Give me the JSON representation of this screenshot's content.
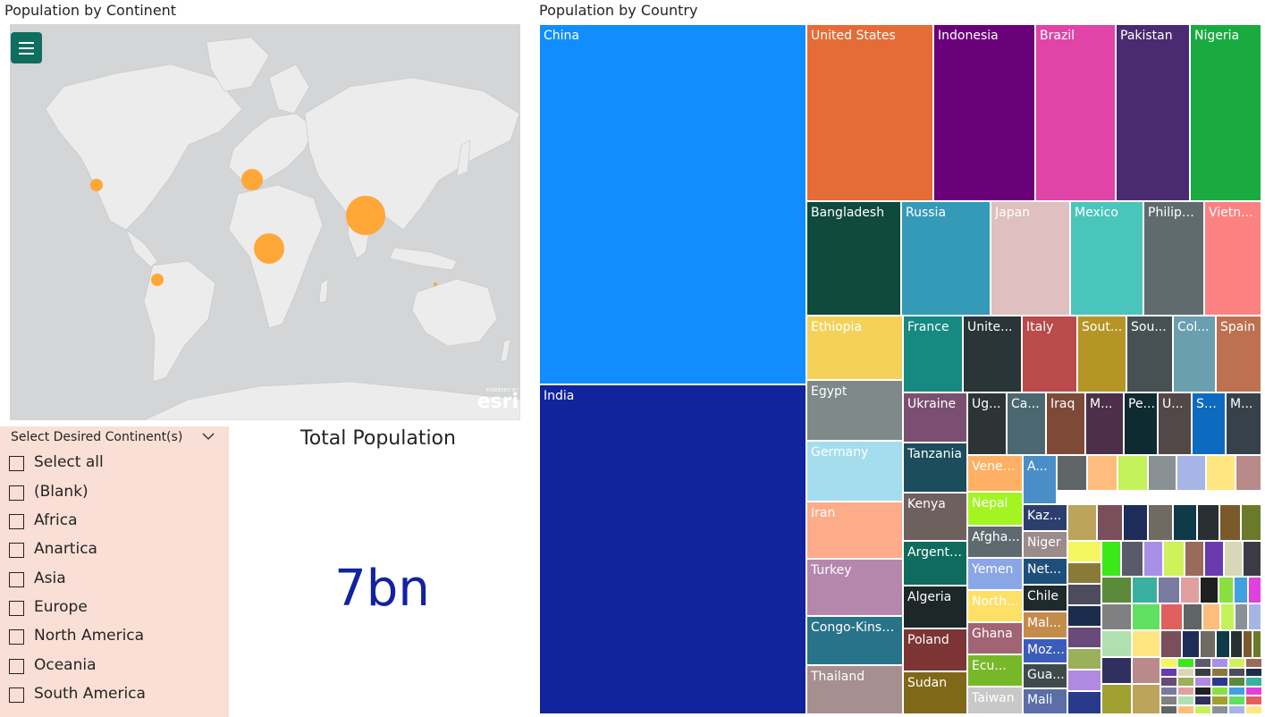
{
  "map_visual": {
    "title": "Population by Continent",
    "menu_icon": "hamburger-menu-icon",
    "attribution_small": "POWERED BY",
    "attribution": "esri",
    "bubble_color": "#ffa737",
    "bubbles": [
      {
        "continent": "North America",
        "size": 1
      },
      {
        "continent": "Europe",
        "size": 2
      },
      {
        "continent": "Asia",
        "size": 4
      },
      {
        "continent": "Africa",
        "size": 3
      },
      {
        "continent": "South America",
        "size": 1
      },
      {
        "continent": "Oceania",
        "size": 0.3
      }
    ]
  },
  "slicer": {
    "header": "Select Desired Continent(s)",
    "chevron_icon": "chevron-down-icon",
    "items": [
      {
        "label": "Select all",
        "checked": false
      },
      {
        "label": "(Blank)",
        "checked": false
      },
      {
        "label": "Africa",
        "checked": false
      },
      {
        "label": "Anartica",
        "checked": false
      },
      {
        "label": "Asia",
        "checked": false
      },
      {
        "label": "Europe",
        "checked": false
      },
      {
        "label": "North America",
        "checked": false
      },
      {
        "label": "Oceania",
        "checked": false
      },
      {
        "label": "South America",
        "checked": false
      }
    ]
  },
  "card": {
    "title": "Total Population",
    "value": "7bn",
    "value_color": "#12239e"
  },
  "treemap": {
    "title": "Population by Country",
    "tiles": [
      {
        "label": "China",
        "color": "#118dff"
      },
      {
        "label": "India",
        "color": "#12239e"
      },
      {
        "label": "United States",
        "color": "#e66c37"
      },
      {
        "label": "Indonesia",
        "color": "#6b007b"
      },
      {
        "label": "Brazil",
        "color": "#e044a7"
      },
      {
        "label": "Pakistan",
        "color": "#4a2a70"
      },
      {
        "label": "Nigeria",
        "color": "#1aab40"
      },
      {
        "label": "Bangladesh",
        "color": "#0f4a3d"
      },
      {
        "label": "Russia",
        "color": "#3599b8"
      },
      {
        "label": "Japan",
        "color": "#dfbfbf"
      },
      {
        "label": "Mexico",
        "color": "#4ac5bb"
      },
      {
        "label": "Philipp...",
        "color": "#5f6b6d"
      },
      {
        "label": "Vietn...",
        "color": "#fb8281"
      },
      {
        "label": "Ethiopia",
        "color": "#f4d25a"
      },
      {
        "label": "Egypt",
        "color": "#7f898a"
      },
      {
        "label": "Germany",
        "color": "#a4ddee"
      },
      {
        "label": "Iran",
        "color": "#fdab89"
      },
      {
        "label": "Turkey",
        "color": "#b687ac"
      },
      {
        "label": "Congo-Kinsh...",
        "color": "#28738a"
      },
      {
        "label": "Thailand",
        "color": "#a78f8f"
      },
      {
        "label": "France",
        "color": "#168980"
      },
      {
        "label": "Unite...",
        "color": "#293537"
      },
      {
        "label": "Italy",
        "color": "#bb4a4a"
      },
      {
        "label": "Sout...",
        "color": "#b59525"
      },
      {
        "label": "Sou...",
        "color": "#475052"
      },
      {
        "label": "Col...",
        "color": "#6a9fb0"
      },
      {
        "label": "Spain",
        "color": "#bd7150"
      },
      {
        "label": "Ukraine",
        "color": "#7b4f71"
      },
      {
        "label": "Tanzania",
        "color": "#1b4d5c"
      },
      {
        "label": "Kenya",
        "color": "#6f6060"
      },
      {
        "label": "Argenti...",
        "color": "#0e6b5d"
      },
      {
        "label": "Algeria",
        "color": "#1e2728"
      },
      {
        "label": "Poland",
        "color": "#7c3434"
      },
      {
        "label": "Sudan",
        "color": "#7f6818"
      },
      {
        "label": "Ug...",
        "color": "#2c3436"
      },
      {
        "label": "Ca...",
        "color": "#4b6770"
      },
      {
        "label": "Iraq",
        "color": "#7e4a38"
      },
      {
        "label": "M...",
        "color": "#4d2f4a"
      },
      {
        "label": "Pe...",
        "color": "#0f2a30"
      },
      {
        "label": "U...",
        "color": "#524848"
      },
      {
        "label": "Sa...",
        "color": "#0d6abf"
      },
      {
        "label": "M...",
        "color": "#374149"
      },
      {
        "label": "Venez...",
        "color": "#ffb064"
      },
      {
        "label": "A...",
        "color": "#4a8ec8"
      },
      {
        "label": "Nepal",
        "color": "#a4f422"
      },
      {
        "label": "Kaz...",
        "color": "#2c3e6e"
      },
      {
        "label": "Afgha...",
        "color": "#5e6a70"
      },
      {
        "label": "Niger",
        "color": "#9c8b8b"
      },
      {
        "label": "Yemen",
        "color": "#8ba6e6"
      },
      {
        "label": "Net...",
        "color": "#1e4f7a"
      },
      {
        "label": "North...",
        "color": "#ffe066"
      },
      {
        "label": "Chile",
        "color": "#1f2a2c"
      },
      {
        "label": "Ghana",
        "color": "#a06474"
      },
      {
        "label": "Mal...",
        "color": "#c38c4a"
      },
      {
        "label": "Ecu...",
        "color": "#76b82a"
      },
      {
        "label": "Moza...",
        "color": "#3b5cbb"
      },
      {
        "label": "Gua...",
        "color": "#3f4a4c"
      },
      {
        "label": "Taiwan",
        "color": "#c8c8c8"
      },
      {
        "label": "Mali",
        "color": "#5b6ea8"
      }
    ],
    "filler_colors": [
      "#5f6466",
      "#ffbc7c",
      "#c4f25a",
      "#8a9194",
      "#a6b4e6",
      "#ffe680",
      "#b98a8a",
      "#bca55a",
      "#7a4e5a",
      "#1e2c5a",
      "#6f6a62",
      "#0e3a4a",
      "#2a2f31",
      "#7a5a2a",
      "#6a7a2a",
      "#f5f560",
      "#3ce81a",
      "#5a5a6a",
      "#a890e8",
      "#cff25a",
      "#9a6a5a",
      "#6a3ab0",
      "#d8d8b8",
      "#3c3c46",
      "#8a7a3a",
      "#4c4c5c",
      "#1c2c4c",
      "#6a4a7a",
      "#9ab05a",
      "#b08ae0",
      "#2a3a8a",
      "#5a8a3a",
      "#3ab0a0",
      "#7a7aa0",
      "#e0a0a0",
      "#202020",
      "#8ae040",
      "#40a0e0",
      "#e040e0",
      "#808080",
      "#b0e0b0",
      "#303060",
      "#a0a030",
      "#60e060",
      "#e06060"
    ]
  }
}
